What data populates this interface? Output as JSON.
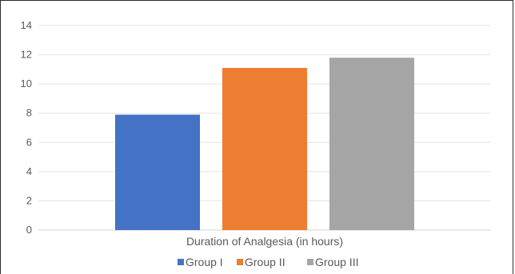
{
  "chart_data": {
    "type": "bar",
    "categories": [
      "Duration of Analgesia (in hours)"
    ],
    "series": [
      {
        "name": "Group I",
        "values": [
          7.9
        ],
        "color": "#4472C4"
      },
      {
        "name": "Group II",
        "values": [
          11.1
        ],
        "color": "#ED7D31"
      },
      {
        "name": "Group III",
        "values": [
          11.8
        ],
        "color": "#A5A5A5"
      }
    ],
    "title": "",
    "xlabel": "",
    "ylabel": "",
    "ylim": [
      0,
      14
    ],
    "yticks": [
      "0",
      "2",
      "4",
      "6",
      "8",
      "10",
      "12",
      "14"
    ],
    "grid": true,
    "legend": "bottom"
  }
}
